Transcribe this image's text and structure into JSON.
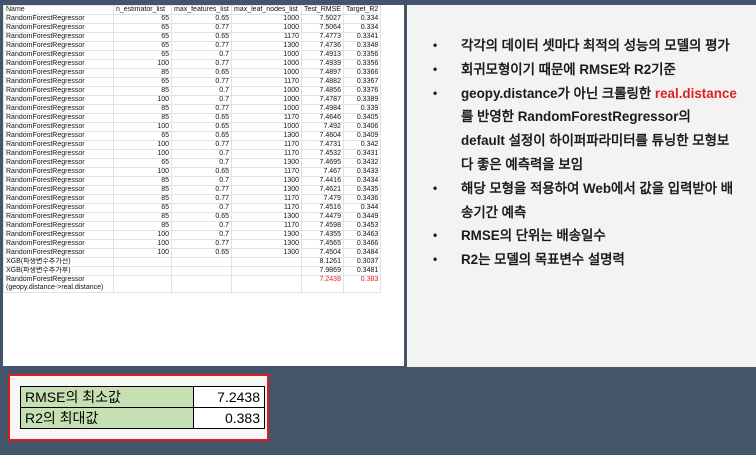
{
  "table": {
    "headers": [
      "Name",
      "n_estimator_list",
      "max_features_list",
      "max_leaf_nodes_list",
      "Test_RMSE",
      "Target_R2"
    ],
    "rows": [
      [
        "RandomForestRegressor",
        "65",
        "0.65",
        "1000",
        "7.5027",
        "0.334"
      ],
      [
        "RandomForestRegressor",
        "65",
        "0.77",
        "1000",
        "7.5064",
        "0.334"
      ],
      [
        "RandomForestRegressor",
        "65",
        "0.65",
        "1170",
        "7.4773",
        "0.3341"
      ],
      [
        "RandomForestRegressor",
        "65",
        "0.77",
        "1300",
        "7.4736",
        "0.3348"
      ],
      [
        "RandomForestRegressor",
        "65",
        "0.7",
        "1000",
        "7.4913",
        "0.3356"
      ],
      [
        "RandomForestRegressor",
        "100",
        "0.77",
        "1000",
        "7.4939",
        "0.3356"
      ],
      [
        "RandomForestRegressor",
        "85",
        "0.65",
        "1000",
        "7.4897",
        "0.3366"
      ],
      [
        "RandomForestRegressor",
        "65",
        "0.77",
        "1170",
        "7.4882",
        "0.3367"
      ],
      [
        "RandomForestRegressor",
        "85",
        "0.7",
        "1000",
        "7.4856",
        "0.3376"
      ],
      [
        "RandomForestRegressor",
        "100",
        "0.7",
        "1000",
        "7.4787",
        "0.3389"
      ],
      [
        "RandomForestRegressor",
        "85",
        "0.77",
        "1000",
        "7.4984",
        "0.339"
      ],
      [
        "RandomForestRegressor",
        "85",
        "0.65",
        "1170",
        "7.4646",
        "0.3405"
      ],
      [
        "RandomForestRegressor",
        "100",
        "0.65",
        "1000",
        "7.492",
        "0.3406"
      ],
      [
        "RandomForestRegressor",
        "65",
        "0.65",
        "1300",
        "7.4604",
        "0.3409"
      ],
      [
        "RandomForestRegressor",
        "100",
        "0.77",
        "1170",
        "7.4731",
        "0.342"
      ],
      [
        "RandomForestRegressor",
        "100",
        "0.7",
        "1170",
        "7.4532",
        "0.3431"
      ],
      [
        "RandomForestRegressor",
        "65",
        "0.7",
        "1300",
        "7.4695",
        "0.3432"
      ],
      [
        "RandomForestRegressor",
        "100",
        "0.65",
        "1170",
        "7.467",
        "0.3433"
      ],
      [
        "RandomForestRegressor",
        "85",
        "0.7",
        "1300",
        "7.4416",
        "0.3434"
      ],
      [
        "RandomForestRegressor",
        "85",
        "0.77",
        "1300",
        "7.4621",
        "0.3435"
      ],
      [
        "RandomForestRegressor",
        "85",
        "0.77",
        "1170",
        "7.479",
        "0.3436"
      ],
      [
        "RandomForestRegressor",
        "65",
        "0.7",
        "1170",
        "7.4516",
        "0.344"
      ],
      [
        "RandomForestRegressor",
        "85",
        "0.65",
        "1300",
        "7.4479",
        "0.3449"
      ],
      [
        "RandomForestRegressor",
        "85",
        "0.7",
        "1170",
        "7.4598",
        "0.3453"
      ],
      [
        "RandomForestRegressor",
        "100",
        "0.7",
        "1300",
        "7.4355",
        "0.3463"
      ],
      [
        "RandomForestRegressor",
        "100",
        "0.77",
        "1300",
        "7.4565",
        "0.3466"
      ],
      [
        "RandomForestRegressor",
        "100",
        "0.65",
        "1300",
        "7.4504",
        "0.3484"
      ],
      [
        "XGB(파생변수추가전)",
        "",
        "",
        "",
        "8.1261",
        "0.3037"
      ],
      [
        "XGB(파생변수추가후)",
        "",
        "",
        "",
        "7.9869",
        "0.3481"
      ]
    ],
    "final_row": {
      "name_line1": "RandomForestRegressor",
      "name_line2": "(geopy.distance->real.distance)",
      "rmse": "7.2438",
      "r2": "0.383"
    }
  },
  "notes": {
    "bullet": "•",
    "items": [
      {
        "text": "각각의 데이터 셋마다 최적의 성능의 모델의 평가"
      },
      {
        "text": "회귀모형이기 때문에 RMSE와 R2기준"
      },
      {
        "text_before": "geopy.distance가 아닌 크롤링한 ",
        "highlight": "real.distance",
        "text_after": "를 반영한 RandomForestRegressor의 default 설정이 하이퍼파라미터를 튜닝한 모형보다 좋은 예측력을 보임"
      },
      {
        "text": "해당 모형을 적용하여 Web에서 값을 입력받아 배송기간 예측"
      },
      {
        "text": "RMSE의 단위는 배송일수"
      },
      {
        "text": "R2는 모델의 목표변수 설명력"
      }
    ]
  },
  "summary": {
    "rmse_label": "RMSE의 최소값",
    "rmse_value": "7.2438",
    "r2_label": "R2의 최대값",
    "r2_value": "0.383"
  },
  "colors": {
    "background": "#44546a",
    "highlight_red": "#e02020",
    "summary_label_green": "#c6e0b4",
    "summary_border": "#e21b1b"
  }
}
